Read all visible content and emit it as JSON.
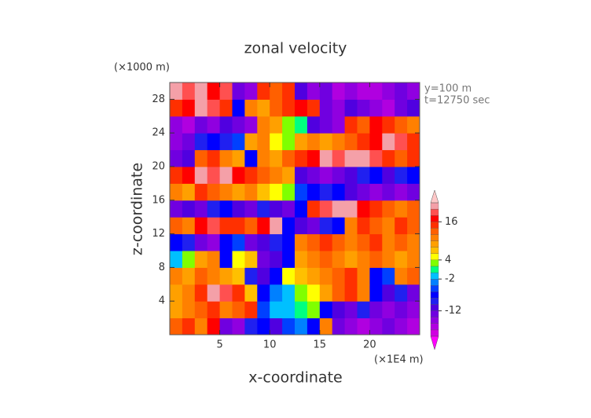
{
  "chart_data": {
    "type": "heatmap",
    "title": "zonal velocity",
    "xlabel": "x-coordinate",
    "ylabel": "z-coordinate",
    "x_unit": "(×1E4 m)",
    "y_unit": "(×1000 m)",
    "annotations": [
      "y=100 m",
      "t=12750 sec"
    ],
    "xlim": [
      0,
      25
    ],
    "ylim": [
      0,
      30
    ],
    "xticks": [
      5,
      10,
      15,
      20
    ],
    "yticks": [
      4,
      8,
      12,
      16,
      20,
      24,
      28
    ],
    "x": [
      0.625,
      1.875,
      3.125,
      4.375,
      5.625,
      6.875,
      8.125,
      9.375,
      10.625,
      11.875,
      13.125,
      14.375,
      15.625,
      16.875,
      18.125,
      19.375,
      20.625,
      21.875,
      23.125,
      24.375
    ],
    "y": [
      1,
      3,
      5,
      7,
      9,
      11,
      13,
      15,
      17,
      19,
      21,
      23,
      25,
      27,
      29
    ],
    "z": [
      [
        12,
        14,
        10,
        16,
        -14,
        -16,
        -10,
        -8,
        -12,
        -6,
        -4,
        -8,
        10,
        -14,
        -16,
        -18,
        -16,
        -14,
        -16,
        -18
      ],
      [
        8,
        10,
        12,
        14,
        10,
        12,
        14,
        -6,
        -2,
        -2,
        0,
        2,
        -8,
        -12,
        -14,
        -10,
        -14,
        -16,
        -14,
        -16
      ],
      [
        8,
        10,
        14,
        20,
        18,
        14,
        6,
        -8,
        -4,
        -2,
        2,
        4,
        8,
        12,
        14,
        10,
        -8,
        -12,
        -10,
        -14
      ],
      [
        10,
        8,
        12,
        10,
        8,
        6,
        -10,
        -12,
        -8,
        4,
        6,
        8,
        10,
        12,
        14,
        10,
        -8,
        -6,
        10,
        12
      ],
      [
        -2,
        2,
        8,
        10,
        -8,
        4,
        6,
        -14,
        -12,
        -8,
        8,
        10,
        12,
        10,
        8,
        10,
        12,
        10,
        8,
        10
      ],
      [
        -8,
        -10,
        -14,
        -16,
        -8,
        -6,
        -14,
        -12,
        -10,
        -8,
        10,
        12,
        14,
        12,
        10,
        12,
        14,
        10,
        12,
        10
      ],
      [
        12,
        10,
        16,
        18,
        14,
        14,
        12,
        16,
        20,
        -8,
        -12,
        -14,
        -10,
        -8,
        10,
        14,
        12,
        10,
        14,
        12
      ],
      [
        -14,
        -12,
        -14,
        -10,
        -8,
        -12,
        -14,
        -10,
        -12,
        -14,
        -8,
        14,
        18,
        20,
        20,
        16,
        14,
        12,
        10,
        12
      ],
      [
        10,
        8,
        14,
        12,
        10,
        8,
        10,
        6,
        4,
        2,
        -6,
        -8,
        -10,
        -8,
        -12,
        -14,
        -16,
        -14,
        -16,
        -14
      ],
      [
        14,
        16,
        20,
        18,
        20,
        16,
        14,
        12,
        10,
        8,
        -12,
        -14,
        -16,
        -14,
        -12,
        -10,
        -8,
        -12,
        -10,
        -8
      ],
      [
        -14,
        -12,
        12,
        14,
        10,
        8,
        -8,
        10,
        8,
        12,
        14,
        16,
        20,
        18,
        20,
        20,
        18,
        14,
        12,
        14
      ],
      [
        -16,
        -14,
        -10,
        -8,
        -10,
        -6,
        8,
        10,
        4,
        2,
        8,
        10,
        8,
        10,
        12,
        14,
        16,
        20,
        18,
        14
      ],
      [
        -16,
        -18,
        -14,
        -16,
        -12,
        -14,
        -16,
        10,
        8,
        2,
        0,
        -12,
        -14,
        -16,
        14,
        12,
        16,
        14,
        12,
        10
      ],
      [
        14,
        16,
        20,
        18,
        14,
        -8,
        10,
        8,
        12,
        14,
        16,
        14,
        -14,
        -16,
        -12,
        -14,
        -16,
        -18,
        -14,
        -12
      ],
      [
        20,
        18,
        20,
        16,
        18,
        -14,
        -16,
        14,
        12,
        14,
        -12,
        -16,
        -14,
        -18,
        -16,
        -18,
        -18,
        -16,
        -14,
        -16
      ]
    ],
    "colorbar": {
      "levels": [
        -20,
        -18,
        -16,
        -14,
        -12,
        -10,
        -8,
        -6,
        -4,
        -2,
        0,
        2,
        4,
        6,
        8,
        10,
        12,
        14,
        16,
        18,
        20,
        22
      ],
      "colors": [
        "#ff00ff",
        "#d000e0",
        "#b000e0",
        "#9000e0",
        "#7000e0",
        "#5000e0",
        "#2020f0",
        "#0000ff",
        "#0040ff",
        "#0080ff",
        "#00c0ff",
        "#00ff80",
        "#80ff00",
        "#ffff00",
        "#ffc000",
        "#ffa000",
        "#ff8000",
        "#ff6000",
        "#ff3000",
        "#ff0000",
        "#ff5050",
        "#f4a0a8",
        "#ffc8c8"
      ],
      "ticks": [
        -12,
        -2,
        4,
        16
      ]
    }
  }
}
